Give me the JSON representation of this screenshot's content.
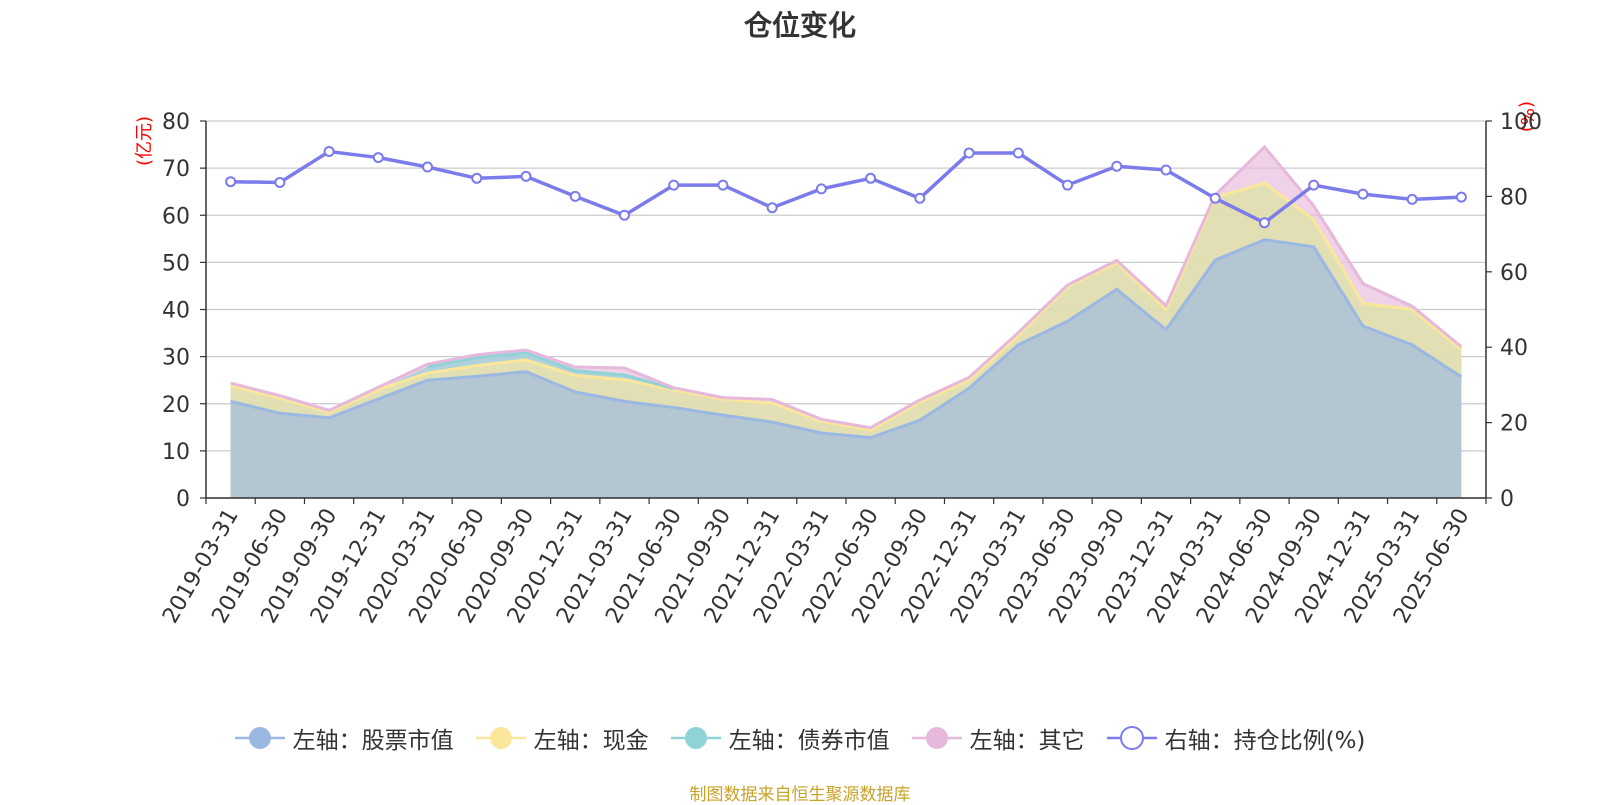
{
  "title": "仓位变化",
  "left_unit": "(亿元)",
  "right_unit": "(%)",
  "source": "制图数据来自恒生聚源数据库",
  "colors": {
    "stock": "#9bb8e3",
    "cash": "#fae79c",
    "bond": "#8fd3d6",
    "other": "#e6b8dc",
    "ratio": "#7b7bec",
    "axis_unit": "#ff0000",
    "source": "#c9a227"
  },
  "chart_data": {
    "type": "area",
    "title": "仓位变化",
    "categories": [
      "2019-03-31",
      "2019-06-30",
      "2019-09-30",
      "2019-12-31",
      "2020-03-31",
      "2020-06-30",
      "2020-09-30",
      "2020-12-31",
      "2021-03-31",
      "2021-06-30",
      "2021-09-30",
      "2021-12-31",
      "2022-03-31",
      "2022-06-30",
      "2022-09-30",
      "2022-12-31",
      "2023-03-31",
      "2023-06-30",
      "2023-09-30",
      "2023-12-31",
      "2024-03-31",
      "2024-06-30",
      "2024-09-30",
      "2024-12-31",
      "2025-03-31",
      "2025-06-30"
    ],
    "left_axis": {
      "label": "(亿元)",
      "ylim": [
        0,
        80
      ],
      "ticks": [
        0,
        10,
        20,
        30,
        40,
        50,
        60,
        70,
        80
      ]
    },
    "right_axis": {
      "label": "(%)",
      "ylim": [
        0,
        100
      ],
      "ticks": [
        0,
        20,
        40,
        60,
        80,
        100
      ]
    },
    "grid": true,
    "legend_position": "bottom",
    "series": [
      {
        "name": "左轴：股票市值",
        "axis": "left",
        "stacked": true,
        "values": [
          20.5,
          18.0,
          17.0,
          21.0,
          25.0,
          25.8,
          26.8,
          22.5,
          20.5,
          19.2,
          17.6,
          16.1,
          13.8,
          12.8,
          16.5,
          23.3,
          32.5,
          37.5,
          44.3,
          35.7,
          50.5,
          54.8,
          53.3,
          36.5,
          32.5,
          25.7
        ]
      },
      {
        "name": "左轴：现金",
        "axis": "left",
        "stacked": true,
        "values": [
          3.3,
          3.2,
          1.2,
          2.0,
          1.5,
          2.3,
          2.5,
          3.5,
          4.6,
          3.7,
          3.4,
          4.0,
          2.5,
          1.6,
          3.8,
          1.7,
          2.0,
          7.3,
          5.6,
          4.3,
          13.3,
          12.0,
          5.8,
          4.8,
          7.5,
          5.8
        ]
      },
      {
        "name": "左轴：债券市值",
        "axis": "left",
        "stacked": true,
        "values": [
          0,
          0,
          0,
          0,
          1.3,
          1.7,
          1.5,
          1.0,
          1.0,
          0.3,
          0,
          0,
          0,
          0,
          0,
          0,
          0,
          0,
          0,
          0,
          0,
          0,
          0,
          0,
          0,
          0
        ]
      },
      {
        "name": "左轴：其它",
        "axis": "left",
        "stacked": true,
        "values": [
          0.6,
          0.5,
          0.4,
          0.5,
          0.6,
          0.6,
          0.6,
          0.8,
          1.5,
          0.2,
          0.3,
          0.8,
          0.4,
          0.5,
          0.5,
          0.6,
          0.6,
          0.4,
          0.5,
          0.8,
          0.5,
          7.7,
          2.9,
          4.2,
          0.7,
          0.6
        ]
      },
      {
        "name": "右轴：持仓比例(%)",
        "axis": "right",
        "type": "line",
        "values": [
          83.9,
          83.7,
          91.9,
          90.3,
          87.8,
          84.8,
          85.3,
          80.0,
          75.0,
          83.0,
          83.0,
          77.0,
          82.0,
          84.8,
          79.5,
          91.5,
          91.5,
          83.0,
          88.0,
          87.0,
          79.5,
          73.0,
          83.0,
          80.6,
          79.2,
          79.8
        ]
      }
    ]
  }
}
